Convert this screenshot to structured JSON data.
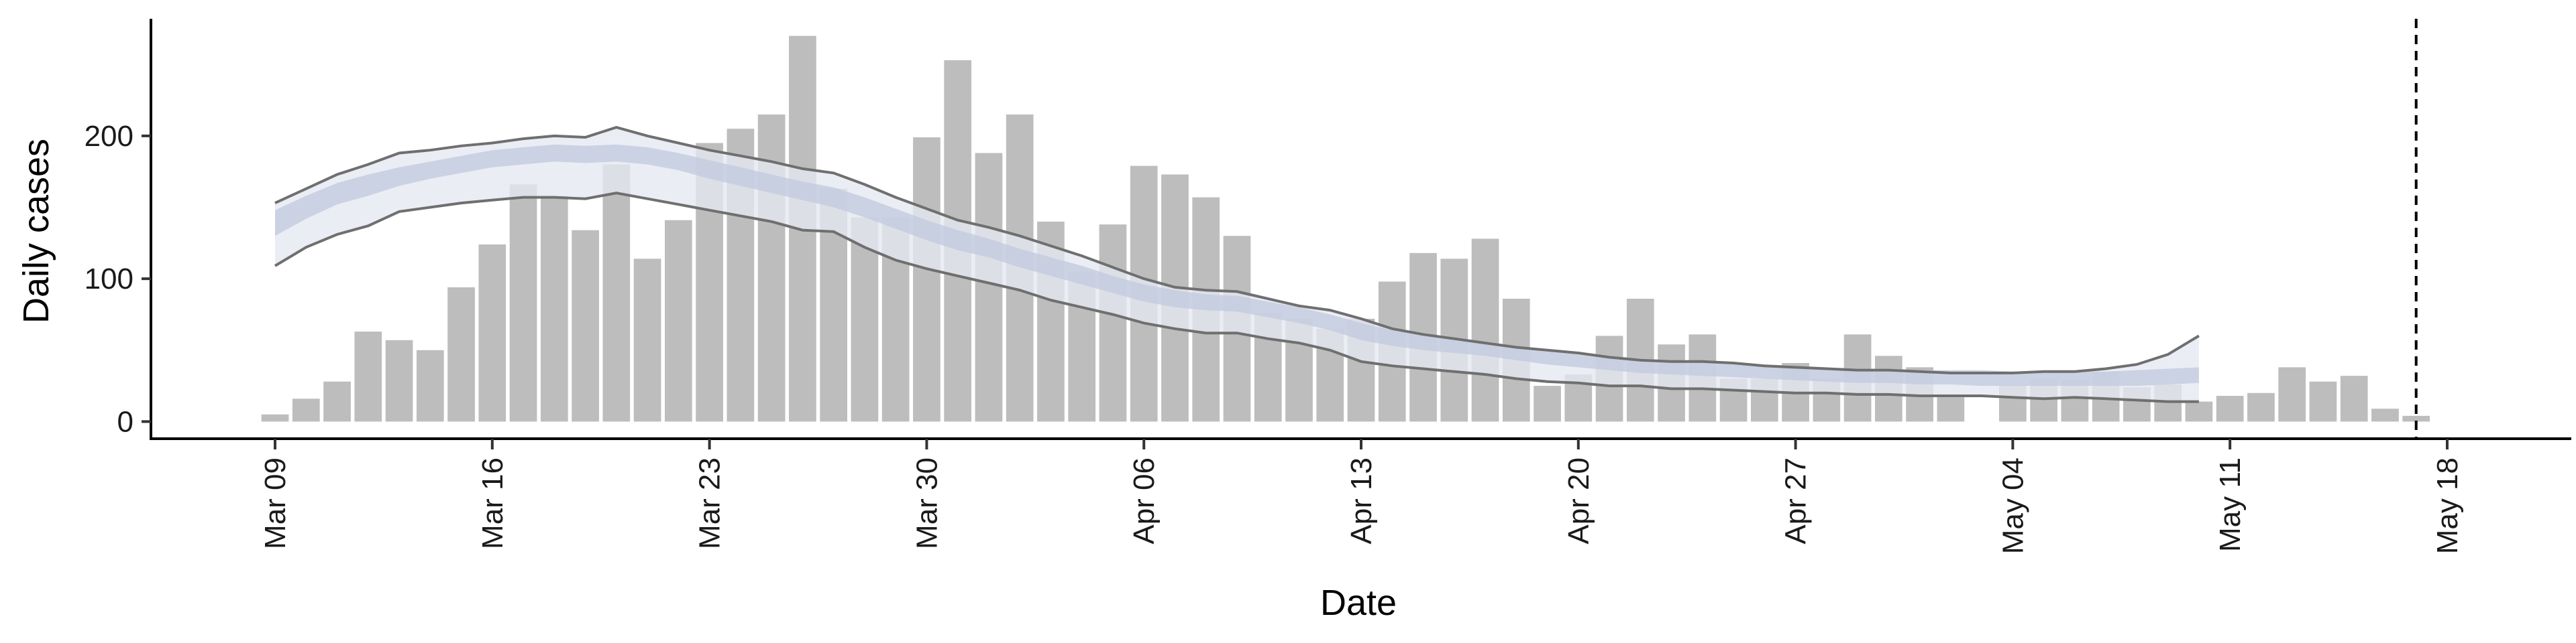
{
  "chart_data": {
    "type": "bar",
    "xlabel": "Date",
    "ylabel": "Daily cases",
    "ylim": [
      -12,
      282
    ],
    "yticks": [
      0,
      100,
      200
    ],
    "x_start": "2020-03-09",
    "xlim": [
      "2020-03-05",
      "2020-05-22"
    ],
    "xticks": [
      "Mar 09",
      "Mar 16",
      "Mar 23",
      "Mar 30",
      "Apr 06",
      "Apr 13",
      "Apr 20",
      "Apr 27",
      "May 04",
      "May 11",
      "May 18"
    ],
    "grid": false,
    "legend": "none",
    "reference_line": {
      "date": "2020-05-17",
      "style": "dashed"
    },
    "bar_color": "#bdbdbd",
    "outer_band_color": "#e6e8f1",
    "inner_band_color": "#c3cadf",
    "line_color": "#6f6f6f",
    "bars": [
      5,
      16,
      28,
      63,
      57,
      50,
      94,
      124,
      166,
      158,
      134,
      180,
      114,
      141,
      195,
      205,
      215,
      270,
      163,
      143,
      143,
      199,
      253,
      188,
      215,
      140,
      105,
      138,
      179,
      173,
      157,
      130,
      76,
      72,
      65,
      72,
      98,
      118,
      114,
      128,
      86,
      25,
      33,
      60,
      86,
      54,
      61,
      30,
      30,
      41,
      30,
      61,
      46,
      38,
      17,
      0,
      26,
      30,
      29,
      35,
      24,
      26,
      14,
      18,
      20,
      38,
      28,
      32,
      9,
      4
    ],
    "outer_band": {
      "lower": [
        109,
        122,
        131,
        137,
        147,
        150,
        153,
        155,
        157,
        157,
        156,
        160,
        156,
        152,
        148,
        144,
        140,
        134,
        133,
        122,
        113,
        107,
        102,
        97,
        92,
        85,
        80,
        75,
        69,
        65,
        62,
        62,
        58,
        55,
        50,
        42,
        39,
        37,
        35,
        33,
        30,
        28,
        27,
        25,
        25,
        23,
        23,
        22,
        21,
        20,
        20,
        19,
        19,
        18,
        18,
        18,
        17,
        16,
        17,
        16,
        15,
        14,
        14
      ],
      "upper": [
        153,
        163,
        173,
        180,
        188,
        190,
        193,
        195,
        198,
        200,
        199,
        206,
        200,
        195,
        190,
        186,
        182,
        177,
        174,
        166,
        157,
        149,
        141,
        136,
        130,
        123,
        116,
        108,
        100,
        94,
        92,
        91,
        86,
        81,
        78,
        72,
        65,
        61,
        58,
        55,
        52,
        50,
        48,
        45,
        43,
        42,
        42,
        41,
        39,
        38,
        37,
        36,
        36,
        35,
        34,
        34,
        34,
        35,
        35,
        37,
        40,
        47,
        60
      ]
    },
    "inner_band": {
      "lower": [
        130,
        142,
        152,
        158,
        165,
        170,
        174,
        178,
        180,
        182,
        181,
        182,
        180,
        176,
        170,
        165,
        160,
        155,
        150,
        143,
        135,
        127,
        120,
        115,
        108,
        102,
        96,
        90,
        84,
        80,
        78,
        77,
        73,
        69,
        64,
        57,
        53,
        50,
        48,
        46,
        43,
        40,
        38,
        36,
        34,
        33,
        32,
        31,
        30,
        29,
        28,
        27,
        27,
        26,
        26,
        25,
        25,
        25,
        25,
        25,
        25,
        26,
        27
      ],
      "upper": [
        148,
        158,
        167,
        173,
        178,
        182,
        186,
        190,
        192,
        194,
        193,
        194,
        192,
        188,
        183,
        178,
        173,
        168,
        164,
        157,
        149,
        141,
        134,
        128,
        121,
        115,
        109,
        102,
        96,
        92,
        89,
        88,
        84,
        80,
        75,
        69,
        64,
        61,
        58,
        56,
        53,
        50,
        48,
        46,
        44,
        43,
        42,
        41,
        40,
        39,
        38,
        37,
        37,
        36,
        36,
        36,
        35,
        35,
        35,
        35,
        36,
        37,
        38
      ]
    }
  }
}
